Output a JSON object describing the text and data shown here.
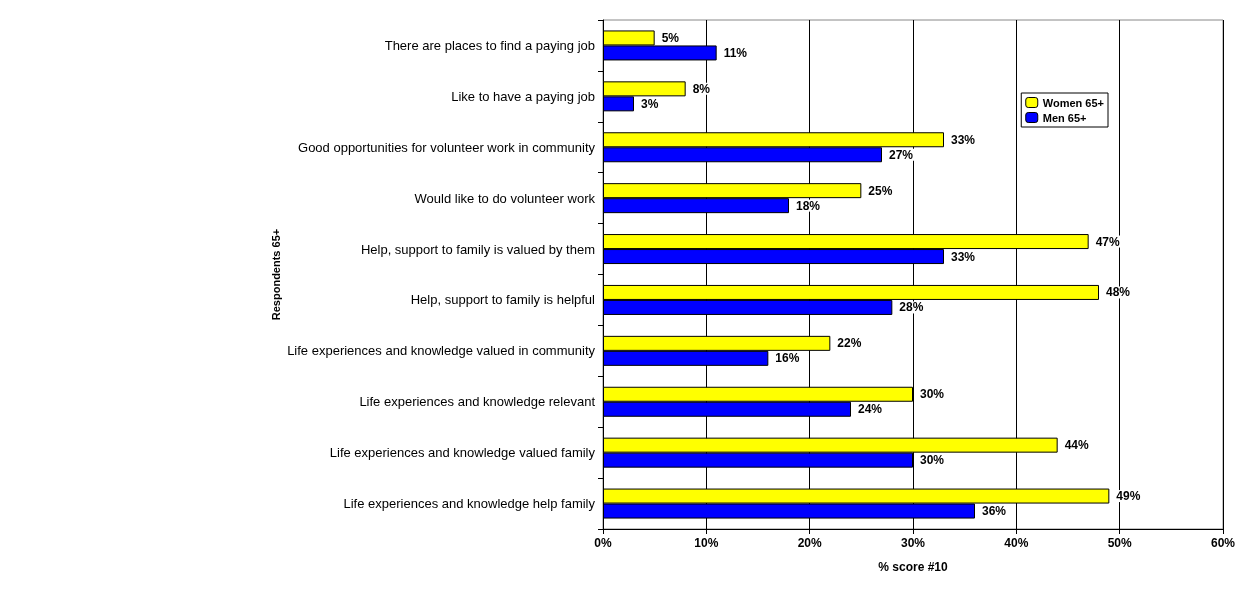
{
  "chart_data": {
    "type": "bar",
    "orientation": "horizontal",
    "xlabel": "% score #10",
    "ylabel": "Respondents 65+",
    "categories": [
      "There are places to find a paying job",
      "Like to have a paying job",
      "Good opportunities for volunteer work in community",
      "Would like to do volunteer work",
      "Help, support to family is valued by them",
      "Help, support to family is helpful",
      "Life experiences and knowledge valued in community",
      "Life experiences and knowledge relevant",
      "Life experiences and knowledge valued family",
      "Life experiences and knowledge help family"
    ],
    "series": [
      {
        "name": "Women 65+",
        "color": "#ffff00",
        "values": [
          5,
          8,
          33,
          25,
          47,
          48,
          22,
          30,
          44,
          49
        ],
        "value_labels": [
          "5%",
          "8%",
          "33%",
          "25%",
          "47%",
          "48%",
          "22%",
          "30%",
          "44%",
          "49%"
        ]
      },
      {
        "name": "Men 65+",
        "color": "#0000ff",
        "values": [
          11,
          3,
          27,
          18,
          33,
          28,
          16,
          24,
          30,
          36
        ],
        "value_labels": [
          "11%",
          "3%",
          "27%",
          "18%",
          "33%",
          "28%",
          "16%",
          "24%",
          "30%",
          "36%"
        ]
      }
    ],
    "xlim": [
      0,
      60
    ],
    "xticks": [
      {
        "value": 0,
        "label": "0%"
      },
      {
        "value": 10,
        "label": "10%"
      },
      {
        "value": 20,
        "label": "20%"
      },
      {
        "value": 30,
        "label": "30%"
      },
      {
        "value": 40,
        "label": "40%"
      },
      {
        "value": 50,
        "label": "50%"
      },
      {
        "value": 60,
        "label": "60%"
      }
    ],
    "grid": "x",
    "legend": "top right"
  }
}
